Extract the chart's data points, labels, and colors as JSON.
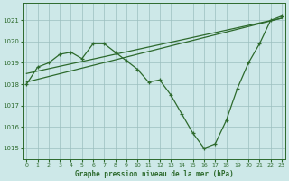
{
  "title": "Graphe pression niveau de la mer (hPa)",
  "bg_color": "#cde8e8",
  "grid_color": "#9bbfbf",
  "line_color": "#2d6a2d",
  "ylim": [
    1014.5,
    1021.8
  ],
  "yticks": [
    1015,
    1016,
    1017,
    1018,
    1019,
    1020,
    1021
  ],
  "xlim": [
    -0.3,
    23.3
  ],
  "xticks": [
    0,
    1,
    2,
    3,
    4,
    5,
    6,
    7,
    8,
    9,
    10,
    11,
    12,
    13,
    14,
    15,
    16,
    17,
    18,
    19,
    20,
    21,
    22,
    23
  ],
  "main_x": [
    0,
    1,
    2,
    3,
    4,
    5,
    6,
    7,
    8,
    9,
    10,
    11,
    12,
    13,
    14,
    15,
    16,
    17,
    18,
    19,
    20,
    21,
    22,
    23
  ],
  "main_y": [
    1018.0,
    1018.8,
    1019.0,
    1019.4,
    1019.5,
    1019.2,
    1019.9,
    1019.9,
    1019.5,
    1019.1,
    1018.7,
    1018.1,
    1018.2,
    1017.5,
    1016.6,
    1015.7,
    1015.0,
    1015.2,
    1016.3,
    1017.8,
    1019.0,
    1019.9,
    1021.0,
    1021.2
  ],
  "trend1_x": [
    0,
    23
  ],
  "trend1_y": [
    1018.5,
    1021.1
  ],
  "trend2_x": [
    0,
    23
  ],
  "trend2_y": [
    1018.1,
    1021.1
  ]
}
